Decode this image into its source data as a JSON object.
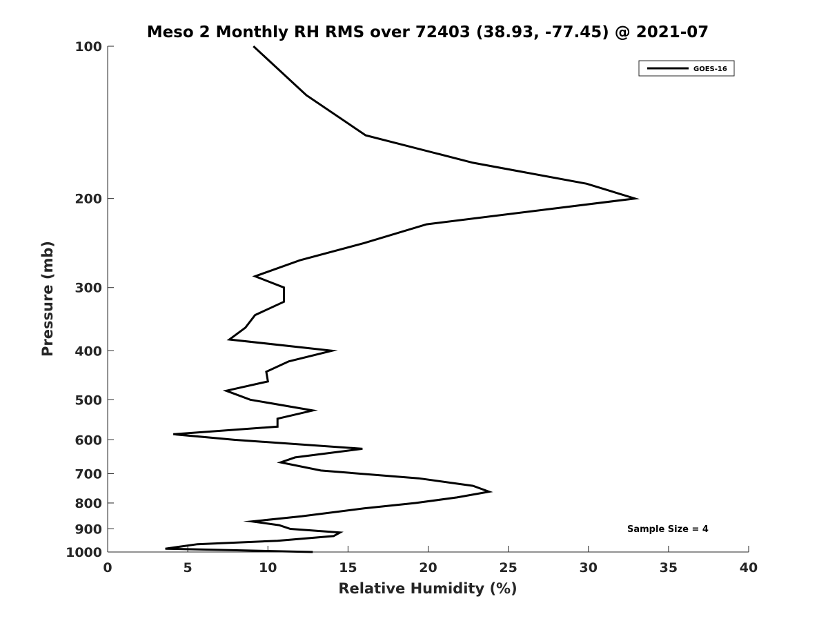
{
  "chart_data": {
    "type": "line",
    "title": "Meso 2 Monthly RH RMS over 72403 (38.93, -77.45) @ 2021-07",
    "xlabel": "Relative Humidity (%)",
    "ylabel": "Pressure (mb)",
    "xlim": [
      0,
      40
    ],
    "ylim": [
      100,
      1000
    ],
    "y_scale": "log",
    "y_reversed": true,
    "x_ticks": [
      0,
      5,
      10,
      15,
      20,
      25,
      30,
      35,
      40
    ],
    "y_ticks": [
      100,
      200,
      300,
      400,
      500,
      600,
      700,
      800,
      900,
      1000
    ],
    "grid": false,
    "legend_placement": "top-right",
    "annotation": "Sample Size = 4",
    "series": [
      {
        "name": "GOES-16",
        "color": "#000000",
        "points": [
          [
            9.1,
            100
          ],
          [
            12.4,
            125
          ],
          [
            16.1,
            150
          ],
          [
            22.8,
            170
          ],
          [
            29.9,
            187
          ],
          [
            32.9,
            200
          ],
          [
            19.9,
            225
          ],
          [
            16.0,
            245
          ],
          [
            12.0,
            265
          ],
          [
            9.2,
            285
          ],
          [
            11.0,
            300
          ],
          [
            11.0,
            320
          ],
          [
            9.2,
            340
          ],
          [
            8.6,
            360
          ],
          [
            7.6,
            380
          ],
          [
            14.0,
            400
          ],
          [
            11.3,
            420
          ],
          [
            9.9,
            440
          ],
          [
            10.0,
            460
          ],
          [
            7.4,
            480
          ],
          [
            8.9,
            500
          ],
          [
            12.8,
            525
          ],
          [
            10.6,
            545
          ],
          [
            10.6,
            565
          ],
          [
            4.1,
            585
          ],
          [
            7.9,
            600
          ],
          [
            15.9,
            625
          ],
          [
            11.7,
            650
          ],
          [
            10.8,
            665
          ],
          [
            13.3,
            690
          ],
          [
            19.4,
            715
          ],
          [
            22.8,
            740
          ],
          [
            23.8,
            760
          ],
          [
            21.8,
            780
          ],
          [
            19.2,
            800
          ],
          [
            16.0,
            820
          ],
          [
            12.1,
            850
          ],
          [
            9.0,
            870
          ],
          [
            10.7,
            885
          ],
          [
            11.4,
            900
          ],
          [
            14.5,
            915
          ],
          [
            14.1,
            930
          ],
          [
            10.6,
            950
          ],
          [
            5.6,
            965
          ],
          [
            3.6,
            985
          ],
          [
            12.8,
            1000
          ]
        ]
      }
    ]
  }
}
